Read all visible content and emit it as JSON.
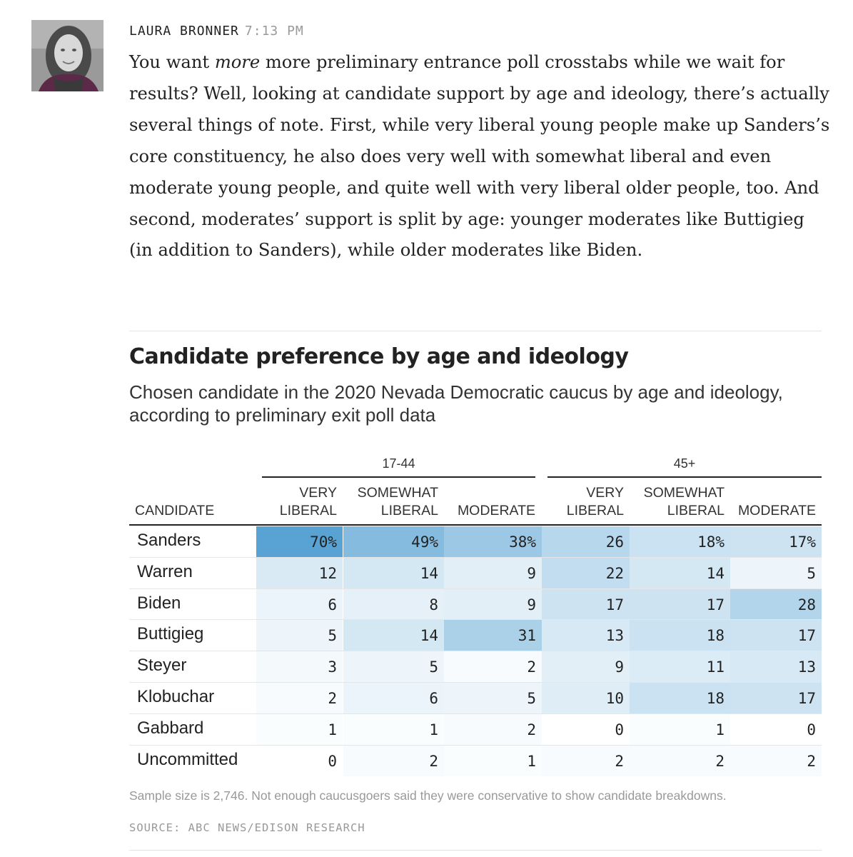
{
  "post": {
    "author": "LAURA BRONNER",
    "time": "7:13 PM",
    "body_parts": [
      {
        "text": "You want ",
        "italic": false
      },
      {
        "text": "more",
        "italic": true
      },
      {
        "text": " more preliminary entrance poll crosstabs while we wait for results? Well, looking at candidate support by age and ideology, there’s actually several things of note. First, while very liberal young people make up Sanders’s core constituency, he also does very well with somewhat liberal and even moderate young people, and quite well with very liberal older people, too. And second, moderates’ support is split by age: younger moderates like Buttigieg (in addition to Sanders), while older moderates like Biden.",
        "italic": false
      }
    ]
  },
  "chart": {
    "title": "Candidate preference by age and ideology",
    "subtitle": "Chosen candidate in the 2020 Nevada Democratic caucus by age and ideology, according to preliminary exit poll data",
    "group_labels": [
      "17-44",
      "45+"
    ],
    "candidate_header": "CANDIDATE",
    "columns": [
      {
        "line1": "VERY",
        "line2": "LIBERAL"
      },
      {
        "line1": "SOMEWHAT",
        "line2": "LIBERAL"
      },
      {
        "line1": "",
        "line2": "MODERATE"
      },
      {
        "line1": "VERY",
        "line2": "LIBERAL"
      },
      {
        "line1": "SOMEWHAT",
        "line2": "LIBERAL"
      },
      {
        "line1": "",
        "line2": "MODERATE"
      }
    ],
    "note": "Sample size is 2,746. Not enough caucusgoers said they were conservative to show candidate breakdowns.",
    "source": "SOURCE: ABC NEWS/EDISON RESEARCH"
  },
  "chart_data": {
    "type": "table",
    "title": "Candidate preference by age and ideology",
    "unit": "percent",
    "column_groups": [
      {
        "name": "17-44",
        "columns": [
          "VERY LIBERAL",
          "SOMEWHAT LIBERAL",
          "MODERATE"
        ]
      },
      {
        "name": "45+",
        "columns": [
          "VERY LIBERAL",
          "SOMEWHAT LIBERAL",
          "MODERATE"
        ]
      }
    ],
    "rows": [
      {
        "candidate": "Sanders",
        "values": [
          70,
          49,
          38,
          26,
          18,
          17
        ],
        "display": [
          "70%",
          "49%",
          "38%",
          "26",
          "18%",
          "17%"
        ]
      },
      {
        "candidate": "Warren",
        "values": [
          12,
          14,
          9,
          22,
          14,
          5
        ],
        "display": [
          "12",
          "14",
          "9",
          "22",
          "14",
          "5"
        ]
      },
      {
        "candidate": "Biden",
        "values": [
          6,
          8,
          9,
          17,
          17,
          28
        ],
        "display": [
          "6",
          "8",
          "9",
          "17",
          "17",
          "28"
        ]
      },
      {
        "candidate": "Buttigieg",
        "values": [
          5,
          14,
          31,
          13,
          18,
          17
        ],
        "display": [
          "5",
          "14",
          "31",
          "13",
          "18",
          "17"
        ]
      },
      {
        "candidate": "Steyer",
        "values": [
          3,
          5,
          2,
          9,
          11,
          13
        ],
        "display": [
          "3",
          "5",
          "2",
          "9",
          "11",
          "13"
        ]
      },
      {
        "candidate": "Klobuchar",
        "values": [
          2,
          6,
          5,
          10,
          18,
          17
        ],
        "display": [
          "2",
          "6",
          "5",
          "10",
          "18",
          "17"
        ]
      },
      {
        "candidate": "Gabbard",
        "values": [
          1,
          1,
          2,
          0,
          1,
          0
        ],
        "display": [
          "1",
          "1",
          "2",
          "0",
          "1",
          "0"
        ]
      },
      {
        "candidate": "Uncommitted",
        "values": [
          0,
          2,
          1,
          2,
          2,
          2
        ],
        "display": [
          "0",
          "2",
          "1",
          "2",
          "2",
          "2"
        ]
      }
    ],
    "color_scale": {
      "low": "#ffffff",
      "high": "#5aa3d4"
    }
  }
}
